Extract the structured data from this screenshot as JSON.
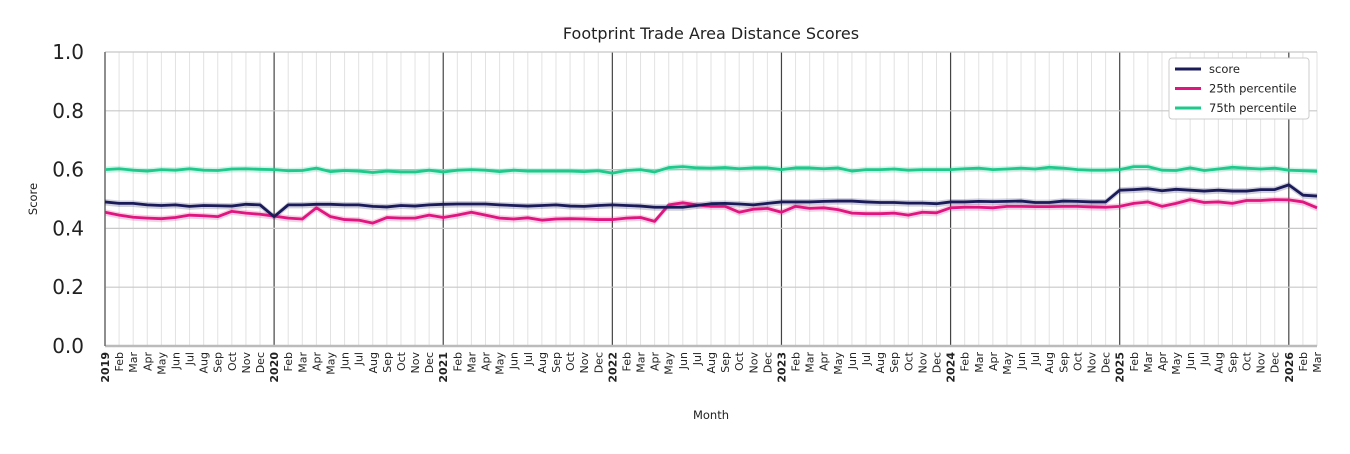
{
  "chart_data": {
    "type": "line",
    "title": "Footprint Trade Area Distance Scores",
    "xlabel": "Month",
    "ylabel": "Score",
    "ylim": [
      0,
      1
    ],
    "yticks": [
      "0.0",
      "0.2",
      "0.4",
      "0.6",
      "0.8",
      "1.0"
    ],
    "grid": true,
    "legend_position": "top-right",
    "x_start": "2019-01",
    "x_end": "2026-03",
    "month_labels": [
      "Jan",
      "Feb",
      "Mar",
      "Apr",
      "May",
      "Jun",
      "Jul",
      "Aug",
      "Sep",
      "Oct",
      "Nov",
      "Dec"
    ],
    "series": [
      {
        "name": "score",
        "color": "#1b1b5a",
        "values": [
          0.49,
          0.485,
          0.485,
          0.48,
          0.478,
          0.48,
          0.475,
          0.478,
          0.477,
          0.476,
          0.482,
          0.48,
          0.44,
          0.48,
          0.48,
          0.482,
          0.482,
          0.48,
          0.48,
          0.475,
          0.473,
          0.478,
          0.476,
          0.48,
          0.482,
          0.483,
          0.483,
          0.483,
          0.48,
          0.478,
          0.476,
          0.478,
          0.48,
          0.476,
          0.475,
          0.478,
          0.48,
          0.478,
          0.476,
          0.472,
          0.472,
          0.472,
          0.478,
          0.484,
          0.485,
          0.483,
          0.48,
          0.485,
          0.49,
          0.49,
          0.49,
          0.492,
          0.493,
          0.493,
          0.49,
          0.488,
          0.488,
          0.486,
          0.486,
          0.484,
          0.49,
          0.49,
          0.492,
          0.491,
          0.492,
          0.493,
          0.488,
          0.488,
          0.493,
          0.492,
          0.49,
          0.49,
          0.53,
          0.532,
          0.535,
          0.528,
          0.533,
          0.53,
          0.527,
          0.53,
          0.527,
          0.527,
          0.532,
          0.532,
          0.548,
          0.513,
          0.51
        ]
      },
      {
        "name": "25th percentile",
        "color": "#e0157f",
        "values": [
          0.455,
          0.445,
          0.438,
          0.435,
          0.433,
          0.437,
          0.445,
          0.443,
          0.44,
          0.458,
          0.452,
          0.448,
          0.442,
          0.435,
          0.432,
          0.47,
          0.44,
          0.43,
          0.428,
          0.418,
          0.437,
          0.435,
          0.435,
          0.445,
          0.437,
          0.445,
          0.455,
          0.445,
          0.435,
          0.432,
          0.436,
          0.428,
          0.432,
          0.433,
          0.432,
          0.43,
          0.43,
          0.435,
          0.437,
          0.424,
          0.48,
          0.487,
          0.48,
          0.475,
          0.475,
          0.455,
          0.465,
          0.468,
          0.455,
          0.475,
          0.468,
          0.47,
          0.464,
          0.452,
          0.45,
          0.45,
          0.452,
          0.445,
          0.455,
          0.453,
          0.47,
          0.472,
          0.472,
          0.47,
          0.475,
          0.475,
          0.474,
          0.474,
          0.475,
          0.475,
          0.473,
          0.472,
          0.475,
          0.485,
          0.49,
          0.475,
          0.485,
          0.498,
          0.488,
          0.49,
          0.485,
          0.495,
          0.495,
          0.498,
          0.497,
          0.49,
          0.47
        ]
      },
      {
        "name": "75th percentile",
        "color": "#1ec98b",
        "values": [
          0.6,
          0.603,
          0.598,
          0.595,
          0.6,
          0.598,
          0.603,
          0.598,
          0.597,
          0.602,
          0.603,
          0.601,
          0.6,
          0.596,
          0.597,
          0.605,
          0.593,
          0.597,
          0.595,
          0.59,
          0.595,
          0.592,
          0.592,
          0.598,
          0.592,
          0.598,
          0.6,
          0.598,
          0.593,
          0.598,
          0.595,
          0.595,
          0.595,
          0.595,
          0.593,
          0.596,
          0.588,
          0.597,
          0.6,
          0.592,
          0.607,
          0.61,
          0.606,
          0.605,
          0.607,
          0.603,
          0.606,
          0.606,
          0.6,
          0.606,
          0.606,
          0.603,
          0.606,
          0.595,
          0.6,
          0.6,
          0.602,
          0.598,
          0.6,
          0.6,
          0.6,
          0.603,
          0.605,
          0.6,
          0.602,
          0.605,
          0.602,
          0.608,
          0.605,
          0.6,
          0.598,
          0.598,
          0.6,
          0.61,
          0.61,
          0.598,
          0.597,
          0.606,
          0.597,
          0.602,
          0.608,
          0.605,
          0.602,
          0.605,
          0.598,
          0.596,
          0.594
        ]
      }
    ]
  }
}
